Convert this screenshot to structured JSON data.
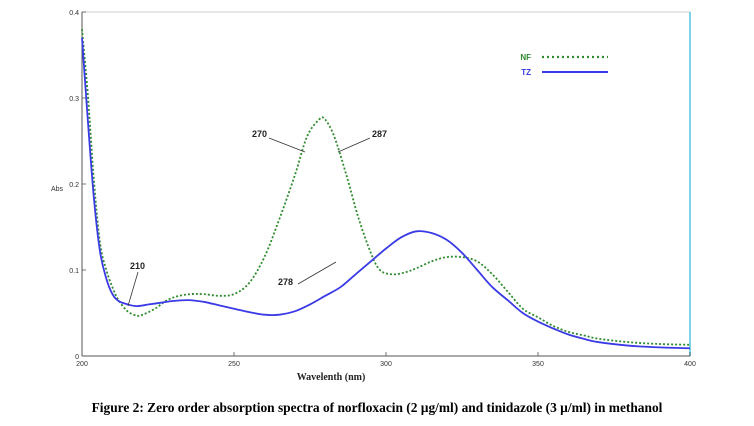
{
  "caption": "Figure 2: Zero order absorption spectra of norfloxacin (2 µg/ml) and tinidazole (3 µ/ml) in methanol",
  "chart_data": {
    "type": "line",
    "xlabel": "Wavelenth (nm)",
    "ylabel": "Abs",
    "xlim": [
      200,
      400
    ],
    "ylim": [
      0,
      0.4
    ],
    "x_ticks": [
      "200",
      "250",
      "300",
      "350",
      "400"
    ],
    "y_ticks": [
      "0",
      "0.1",
      "0.2",
      "0.3",
      "0.4"
    ],
    "grid": false,
    "legend_position": "top-right",
    "series": [
      {
        "name": "NF",
        "style": "dotted",
        "color": "#2e8b2e",
        "points": [
          [
            200,
            0.38
          ],
          [
            202,
            0.3
          ],
          [
            204,
            0.2
          ],
          [
            206,
            0.13
          ],
          [
            208,
            0.1
          ],
          [
            210,
            0.08
          ],
          [
            212,
            0.065
          ],
          [
            215,
            0.052
          ],
          [
            218,
            0.047
          ],
          [
            220,
            0.048
          ],
          [
            224,
            0.055
          ],
          [
            228,
            0.065
          ],
          [
            232,
            0.07
          ],
          [
            236,
            0.072
          ],
          [
            240,
            0.072
          ],
          [
            245,
            0.07
          ],
          [
            250,
            0.072
          ],
          [
            255,
            0.085
          ],
          [
            260,
            0.115
          ],
          [
            265,
            0.16
          ],
          [
            270,
            0.21
          ],
          [
            274,
            0.255
          ],
          [
            278,
            0.275
          ],
          [
            280,
            0.275
          ],
          [
            283,
            0.255
          ],
          [
            287,
            0.21
          ],
          [
            291,
            0.16
          ],
          [
            295,
            0.12
          ],
          [
            298,
            0.1
          ],
          [
            302,
            0.095
          ],
          [
            306,
            0.097
          ],
          [
            310,
            0.102
          ],
          [
            315,
            0.11
          ],
          [
            320,
            0.115
          ],
          [
            325,
            0.115
          ],
          [
            330,
            0.11
          ],
          [
            335,
            0.095
          ],
          [
            340,
            0.075
          ],
          [
            345,
            0.055
          ],
          [
            350,
            0.045
          ],
          [
            355,
            0.035
          ],
          [
            360,
            0.028
          ],
          [
            365,
            0.024
          ],
          [
            370,
            0.02
          ],
          [
            380,
            0.016
          ],
          [
            390,
            0.014
          ],
          [
            400,
            0.013
          ]
        ]
      },
      {
        "name": "TZ",
        "style": "solid",
        "color": "#3a3ae6",
        "points": [
          [
            200,
            0.37
          ],
          [
            202,
            0.27
          ],
          [
            204,
            0.18
          ],
          [
            206,
            0.12
          ],
          [
            208,
            0.09
          ],
          [
            210,
            0.072
          ],
          [
            212,
            0.064
          ],
          [
            215,
            0.06
          ],
          [
            218,
            0.058
          ],
          [
            222,
            0.06
          ],
          [
            226,
            0.062
          ],
          [
            230,
            0.064
          ],
          [
            235,
            0.065
          ],
          [
            240,
            0.063
          ],
          [
            245,
            0.059
          ],
          [
            250,
            0.055
          ],
          [
            255,
            0.051
          ],
          [
            260,
            0.048
          ],
          [
            265,
            0.048
          ],
          [
            270,
            0.052
          ],
          [
            275,
            0.06
          ],
          [
            280,
            0.07
          ],
          [
            285,
            0.08
          ],
          [
            290,
            0.095
          ],
          [
            295,
            0.11
          ],
          [
            300,
            0.125
          ],
          [
            305,
            0.138
          ],
          [
            310,
            0.145
          ],
          [
            315,
            0.143
          ],
          [
            320,
            0.135
          ],
          [
            325,
            0.12
          ],
          [
            330,
            0.1
          ],
          [
            335,
            0.08
          ],
          [
            340,
            0.065
          ],
          [
            345,
            0.05
          ],
          [
            350,
            0.04
          ],
          [
            355,
            0.032
          ],
          [
            360,
            0.025
          ],
          [
            365,
            0.02
          ],
          [
            370,
            0.016
          ],
          [
            380,
            0.012
          ],
          [
            390,
            0.01
          ],
          [
            400,
            0.009
          ]
        ]
      }
    ],
    "annotations": [
      {
        "text": "270",
        "at": [
          275,
          0.22
        ]
      },
      {
        "text": "287",
        "at": [
          285,
          0.22
        ]
      },
      {
        "text": "210",
        "at": [
          215,
          0.062
        ]
      },
      {
        "text": "278",
        "at": [
          272,
          0.055
        ]
      }
    ]
  }
}
